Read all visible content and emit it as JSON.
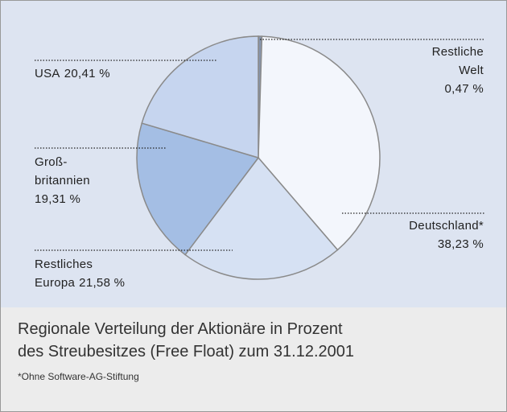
{
  "chart_data": {
    "type": "pie",
    "categories": [
      "Restliche\nWelt",
      "Deutschland*",
      "Restliches\nEuropa",
      "Groß-\nbritannien",
      "USA"
    ],
    "values": [
      0.47,
      38.23,
      21.58,
      19.31,
      20.41
    ],
    "value_labels": [
      "0,47 %",
      "38,23 %",
      "21,58 %",
      "19,31 %",
      "20,41 %"
    ],
    "colors": [
      "#8796ae",
      "#f3f6fc",
      "#d6e1f3",
      "#a4bee4",
      "#c6d5ef"
    ],
    "title": "Regionale Verteilung der Aktionäre in Prozent\ndes Streubesitzes (Free Float) zum 31.12.2001",
    "footnote": "*Ohne Software-AG-Stiftung"
  }
}
